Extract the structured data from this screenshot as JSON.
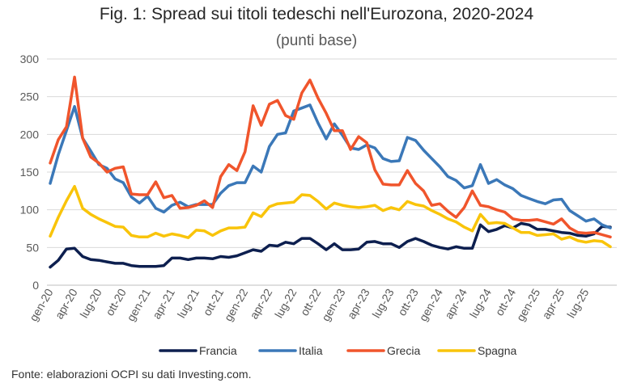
{
  "title": "Fig. 1: Spread sui titoli tedeschi nell'Eurozona, 2020-2024",
  "subtitle": "(punti base)",
  "source": "Fonte: elaborazioni OCPI su dati Investing.com.",
  "chart_data": {
    "type": "line",
    "title": "Fig. 1: Spread sui titoli tedeschi nell'Eurozona, 2020-2024",
    "subtitle": "(punti base)",
    "ylim": [
      0,
      300
    ],
    "yticks": [
      0,
      50,
      100,
      150,
      200,
      250,
      300
    ],
    "grid": true,
    "legend_position": "bottom",
    "x_tick_labels": [
      "gen-20",
      "apr-20",
      "lug-20",
      "ott-20",
      "gen-21",
      "apr-21",
      "lug-21",
      "ott-21",
      "gen-22",
      "apr-22",
      "lug-22",
      "ott-22",
      "gen-23",
      "apr-23",
      "lug-23",
      "ott-23",
      "gen-24",
      "apr-24",
      "lug-24",
      "ott-24",
      "gen-25",
      "apr-25",
      "lug-25"
    ],
    "x": [
      "gen-20",
      "feb-20",
      "mar-20",
      "apr-20",
      "mag-20",
      "giu-20",
      "lug-20",
      "ago-20",
      "set-20",
      "ott-20",
      "nov-20",
      "dic-20",
      "gen-21",
      "feb-21",
      "mar-21",
      "apr-21",
      "mag-21",
      "giu-21",
      "lug-21",
      "ago-21",
      "set-21",
      "ott-21",
      "nov-21",
      "dic-21",
      "gen-22",
      "feb-22",
      "mar-22",
      "apr-22",
      "mag-22",
      "giu-22",
      "lug-22",
      "ago-22",
      "set-22",
      "ott-22",
      "nov-22",
      "dic-22",
      "gen-23",
      "feb-23",
      "mar-23",
      "apr-23",
      "mag-23",
      "giu-23",
      "lug-23",
      "ago-23",
      "set-23",
      "ott-23",
      "nov-23",
      "dic-23",
      "gen-24",
      "feb-24",
      "mar-24",
      "apr-24",
      "mag-24",
      "giu-24",
      "lug-24",
      "ago-24",
      "set-24",
      "ott-24",
      "nov-24",
      "dic-24",
      "gen-25",
      "feb-25",
      "mar-25",
      "apr-25",
      "mag-25",
      "giu-25",
      "lug-25",
      "ago-25",
      "set-25",
      "ott-25"
    ],
    "series": [
      {
        "name": "Francia",
        "color": "#0d1f4f",
        "values": [
          24,
          33,
          48,
          49,
          38,
          34,
          33,
          31,
          29,
          29,
          26,
          25,
          25,
          25,
          26,
          36,
          36,
          34,
          36,
          36,
          35,
          38,
          37,
          39,
          43,
          47,
          45,
          53,
          52,
          57,
          55,
          62,
          62,
          55,
          47,
          55,
          47,
          47,
          48,
          57,
          58,
          55,
          55,
          50,
          58,
          62,
          58,
          53,
          50,
          48,
          51,
          49,
          49,
          80,
          71,
          74,
          79,
          76,
          82,
          80,
          74,
          74,
          72,
          70,
          69,
          66,
          65,
          68,
          78,
          77
        ]
      },
      {
        "name": "Italia",
        "color": "#3b78b8",
        "values": [
          135,
          173,
          205,
          237,
          195,
          178,
          160,
          155,
          141,
          136,
          117,
          109,
          118,
          102,
          97,
          106,
          110,
          104,
          107,
          107,
          107,
          122,
          132,
          136,
          136,
          158,
          150,
          184,
          200,
          202,
          231,
          235,
          239,
          215,
          194,
          214,
          199,
          182,
          180,
          186,
          182,
          168,
          164,
          165,
          196,
          192,
          179,
          168,
          157,
          144,
          139,
          129,
          132,
          160,
          135,
          140,
          133,
          128,
          119,
          115,
          111,
          108,
          113,
          114,
          99,
          92,
          85,
          88,
          80,
          76
        ]
      },
      {
        "name": "Grecia",
        "color": "#f0552c",
        "values": [
          162,
          193,
          210,
          276,
          195,
          170,
          162,
          150,
          155,
          157,
          121,
          120,
          120,
          137,
          116,
          119,
          102,
          103,
          106,
          112,
          103,
          144,
          160,
          152,
          177,
          238,
          212,
          240,
          245,
          225,
          220,
          255,
          272,
          248,
          228,
          205,
          205,
          180,
          197,
          189,
          153,
          134,
          133,
          133,
          152,
          135,
          125,
          106,
          108,
          98,
          90,
          103,
          125,
          106,
          104,
          100,
          97,
          88,
          86,
          86,
          87,
          84,
          81,
          88,
          76,
          70,
          69,
          70,
          67,
          64
        ]
      },
      {
        "name": "Spagna",
        "color": "#f9c40a",
        "values": [
          65,
          90,
          112,
          131,
          102,
          94,
          88,
          83,
          78,
          77,
          66,
          64,
          64,
          69,
          65,
          68,
          66,
          63,
          73,
          72,
          66,
          72,
          76,
          76,
          77,
          96,
          91,
          104,
          108,
          109,
          110,
          120,
          119,
          111,
          101,
          109,
          106,
          104,
          103,
          104,
          106,
          99,
          103,
          100,
          111,
          107,
          105,
          99,
          94,
          88,
          84,
          77,
          72,
          94,
          82,
          83,
          82,
          76,
          70,
          70,
          66,
          67,
          68,
          61,
          64,
          59,
          57,
          59,
          58,
          51
        ]
      }
    ]
  }
}
